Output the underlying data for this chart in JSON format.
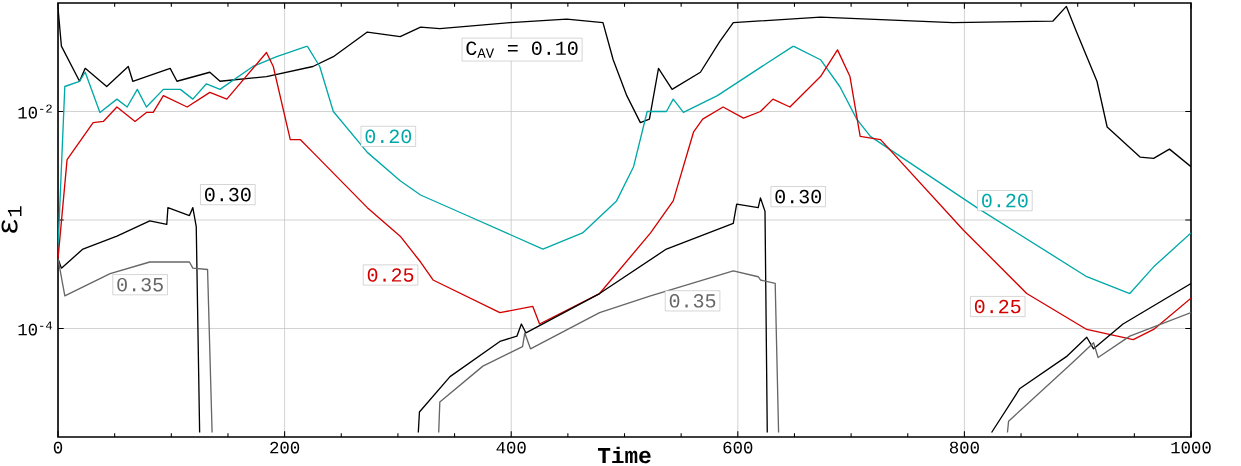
{
  "chart_data": {
    "type": "line",
    "xlabel": "Time",
    "ylabel": "ε$_{1}$",
    "log": "y",
    "grid": true,
    "xlim": [
      0,
      1000
    ],
    "ylim": [
      1e-05,
      0.1
    ],
    "xticks": [
      0,
      200,
      400,
      600,
      800,
      1000
    ],
    "yticks": [
      {
        "value": 0.01,
        "label": "10$^{-2}$"
      },
      {
        "value": 0.001,
        "label": null
      },
      {
        "value": 0.0001,
        "label": "10$^{-4}$"
      }
    ],
    "series": [
      {
        "name": "C$_{AV}$ = 0.10",
        "color": "#000000",
        "x": [
          0,
          3,
          19,
          24,
          43,
          62,
          66,
          99,
          105,
          134,
          143,
          184,
          225,
          243,
          273,
          302,
          320,
          337,
          399,
          449,
          481,
          490,
          502,
          514,
          522,
          530,
          542,
          567,
          584,
          596,
          673,
          790,
          878,
          890,
          899,
          917,
          926,
          955,
          967,
          981,
          1000
        ],
        "values": [
          0.09,
          0.04,
          0.019,
          0.025,
          0.017,
          0.026,
          0.019,
          0.025,
          0.019,
          0.023,
          0.019,
          0.021,
          0.026,
          0.032,
          0.054,
          0.049,
          0.06,
          0.058,
          0.066,
          0.071,
          0.066,
          0.03,
          0.014,
          0.0079,
          0.0085,
          0.025,
          0.016,
          0.023,
          0.044,
          0.066,
          0.074,
          0.066,
          0.068,
          0.093,
          0.054,
          0.019,
          0.0072,
          0.0038,
          0.0037,
          0.0045,
          0.0031
        ]
      },
      {
        "name": "0.20",
        "color": "#00a8a8",
        "x": [
          0,
          6,
          19,
          24,
          37,
          52,
          61,
          70,
          78,
          93,
          108,
          119,
          131,
          143,
          172,
          193,
          220,
          231,
          243,
          273,
          302,
          320,
          361,
          428,
          463,
          493,
          508,
          520,
          537,
          543,
          552,
          582,
          626,
          649,
          673,
          690,
          705,
          717,
          811,
          908,
          946,
          967,
          1000
        ],
        "values": [
          0.00054,
          0.017,
          0.019,
          0.023,
          0.0098,
          0.013,
          0.011,
          0.016,
          0.011,
          0.016,
          0.016,
          0.013,
          0.018,
          0.016,
          0.026,
          0.032,
          0.04,
          0.026,
          0.01,
          0.0042,
          0.0023,
          0.0017,
          0.0011,
          0.00054,
          0.00076,
          0.0015,
          0.0031,
          0.01,
          0.01,
          0.013,
          0.0098,
          0.014,
          0.028,
          0.04,
          0.03,
          0.017,
          0.0085,
          0.0059,
          0.0013,
          0.0003,
          0.00021,
          0.00037,
          0.00076
        ]
      },
      {
        "name": "0.25",
        "color": "#d40000",
        "x": [
          0,
          8,
          31,
          40,
          52,
          68,
          78,
          84,
          93,
          114,
          134,
          149,
          184,
          190,
          205,
          214,
          225,
          273,
          302,
          320,
          331,
          390,
          419,
          425,
          478,
          523,
          543,
          561,
          569,
          587,
          605,
          620,
          631,
          646,
          673,
          688,
          699,
          708,
          726,
          799,
          855,
          908,
          949,
          967,
          1000
        ],
        "values": [
          0.00044,
          0.0036,
          0.0079,
          0.0081,
          0.011,
          0.0081,
          0.0098,
          0.0098,
          0.014,
          0.011,
          0.015,
          0.013,
          0.035,
          0.026,
          0.0055,
          0.0055,
          0.0042,
          0.0013,
          0.00071,
          0.00041,
          0.00028,
          0.00014,
          0.00016,
          0.00011,
          0.00021,
          0.00076,
          0.0015,
          0.0065,
          0.0085,
          0.011,
          0.0087,
          0.01,
          0.013,
          0.011,
          0.021,
          0.037,
          0.021,
          0.0059,
          0.0055,
          0.00081,
          0.00021,
          9.8e-05,
          7.9e-05,
          9.8e-05,
          0.00019
        ]
      },
      {
        "name": "0.30",
        "color": "#000000",
        "x": [
          0,
          3,
          22,
          52,
          81,
          96,
          97,
          116,
          119,
          122,
          125,
          220,
          318,
          319,
          346,
          390,
          405,
          409,
          413,
          478,
          537,
          596,
          599,
          618,
          620,
          624,
          626,
          720,
          824,
          849,
          890,
          908,
          914,
          940,
          1000
        ],
        "values": [
          0.00044,
          0.00036,
          0.00054,
          0.00071,
          0.00098,
          0.00091,
          0.0013,
          0.0011,
          0.0013,
          0.00087,
          1.1e-05,
          null,
          1.1e-05,
          1.7e-05,
          3.6e-05,
          7.6e-05,
          8.5e-05,
          0.00011,
          9.1e-05,
          0.00021,
          0.00054,
          0.00093,
          0.0014,
          0.0013,
          0.0016,
          0.0012,
          1.1e-05,
          null,
          1.1e-05,
          2.8e-05,
          5.5e-05,
          8.3e-05,
          6.5e-05,
          0.00011,
          0.00026
        ]
      },
      {
        "name": "0.35",
        "color": "#666666",
        "x": [
          0,
          6,
          46,
          81,
          116,
          119,
          132,
          136,
          230,
          336,
          337,
          375,
          410,
          412,
          417,
          478,
          523,
          596,
          618,
          620,
          633,
          636,
          737,
          838,
          839,
          896,
          914,
          918,
          946,
          1000
        ],
        "values": [
          0.00044,
          0.0002,
          0.00032,
          0.00041,
          0.00041,
          0.00036,
          0.00035,
          1.1e-05,
          null,
          1.1e-05,
          2.1e-05,
          4.5e-05,
          6.8e-05,
          9.1e-05,
          6.5e-05,
          0.00014,
          0.0002,
          0.00034,
          0.0003,
          0.00028,
          0.00026,
          1.1e-05,
          null,
          1.1e-05,
          1.4e-05,
          4.9e-05,
          7.4e-05,
          5.4e-05,
          8.5e-05,
          0.00014
        ]
      }
    ]
  }
}
